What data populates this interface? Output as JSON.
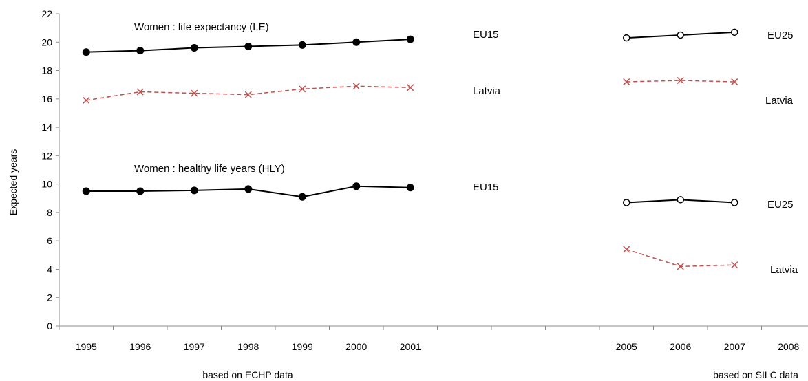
{
  "chart_data": {
    "type": "line",
    "ylabel": "Expected years",
    "ylim": [
      0,
      22
    ],
    "ytick_step": 2,
    "categories": [
      "1995",
      "1996",
      "1997",
      "1998",
      "1999",
      "2000",
      "2001",
      "",
      "",
      "",
      "2005",
      "2006",
      "2007",
      "2008"
    ],
    "annotations": {
      "le_title": "Women : life expectancy (LE)",
      "hly_title": "Women : healthy life years (HLY)",
      "echp_note": "based on  ECHP data",
      "silc_note": "based on SILC data"
    },
    "series": [
      {
        "name": "EU15",
        "group": "LE",
        "style": "solid-filled",
        "color": "#000000",
        "x": [
          "1995",
          "1996",
          "1997",
          "1998",
          "1999",
          "2000",
          "2001"
        ],
        "values": [
          19.3,
          19.4,
          19.6,
          19.7,
          19.8,
          20.0,
          20.2
        ]
      },
      {
        "name": "Latvia",
        "group": "LE",
        "style": "dashed-x",
        "color": "#c0504d",
        "x": [
          "1995",
          "1996",
          "1997",
          "1998",
          "1999",
          "2000",
          "2001"
        ],
        "values": [
          15.9,
          16.5,
          16.4,
          16.3,
          16.7,
          16.9,
          16.8
        ]
      },
      {
        "name": "EU25",
        "group": "LE",
        "style": "solid-open",
        "color": "#000000",
        "x": [
          "2005",
          "2006",
          "2007"
        ],
        "values": [
          20.3,
          20.5,
          20.7
        ]
      },
      {
        "name": "Latvia",
        "group": "LE",
        "style": "dashed-x",
        "color": "#c0504d",
        "x": [
          "2005",
          "2006",
          "2007"
        ],
        "values": [
          17.2,
          17.3,
          17.2
        ]
      },
      {
        "name": "EU15",
        "group": "HLY",
        "style": "solid-filled",
        "color": "#000000",
        "x": [
          "1995",
          "1996",
          "1997",
          "1998",
          "1999",
          "2000",
          "2001"
        ],
        "values": [
          9.5,
          9.5,
          9.55,
          9.65,
          9.1,
          9.85,
          9.75
        ]
      },
      {
        "name": "EU25",
        "group": "HLY",
        "style": "solid-open",
        "color": "#000000",
        "x": [
          "2005",
          "2006",
          "2007"
        ],
        "values": [
          8.7,
          8.9,
          8.7
        ]
      },
      {
        "name": "Latvia",
        "group": "HLY",
        "style": "dashed-x",
        "color": "#c0504d",
        "x": [
          "2005",
          "2006",
          "2007"
        ],
        "values": [
          5.4,
          4.2,
          4.3
        ]
      }
    ]
  }
}
